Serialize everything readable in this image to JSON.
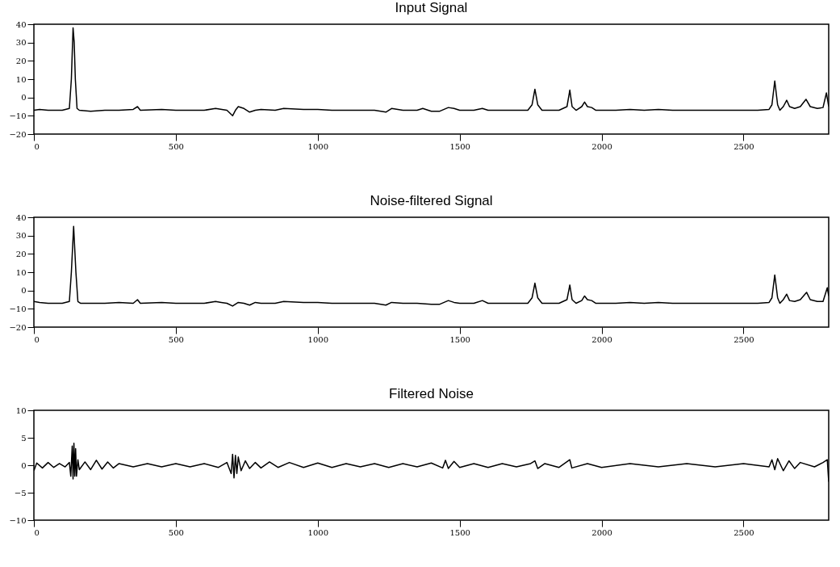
{
  "chart_data": [
    {
      "type": "line",
      "title": "Input Signal",
      "x": [
        0,
        20,
        50,
        100,
        125,
        132,
        138,
        142,
        146,
        152,
        160,
        200,
        250,
        300,
        350,
        365,
        375,
        450,
        500,
        550,
        600,
        640,
        680,
        700,
        710,
        720,
        740,
        760,
        780,
        800,
        850,
        880,
        950,
        1000,
        1050,
        1100,
        1150,
        1200,
        1240,
        1260,
        1300,
        1350,
        1370,
        1400,
        1430,
        1460,
        1480,
        1500,
        1550,
        1580,
        1600,
        1650,
        1700,
        1740,
        1755,
        1765,
        1775,
        1790,
        1850,
        1878,
        1888,
        1896,
        1910,
        1930,
        1940,
        1950,
        1965,
        1980,
        2050,
        2100,
        2150,
        2200,
        2250,
        2300,
        2350,
        2400,
        2450,
        2500,
        2550,
        2590,
        2600,
        2610,
        2620,
        2628,
        2640,
        2652,
        2662,
        2680,
        2700,
        2720,
        2735,
        2760,
        2780,
        2792,
        2800
      ],
      "series": [
        {
          "color": "#000000",
          "values": [
            -7,
            -6.5,
            -7,
            -7,
            -6,
            10,
            38,
            30,
            10,
            -6,
            -7,
            -7.5,
            -7,
            -7,
            -6.5,
            -5,
            -7,
            -6.5,
            -7,
            -7,
            -7,
            -6,
            -7,
            -10,
            -7,
            -5,
            -6,
            -8,
            -7,
            -6.5,
            -7,
            -6,
            -6.5,
            -6.5,
            -7,
            -7,
            -7,
            -7,
            -8,
            -6,
            -7,
            -7,
            -6,
            -7.5,
            -7.5,
            -5.5,
            -6,
            -7,
            -7,
            -6,
            -7,
            -7,
            -7,
            -7,
            -4,
            4.5,
            -4,
            -7,
            -7,
            -5,
            4,
            -5,
            -7,
            -5,
            -2.5,
            -5,
            -5.5,
            -7,
            -7,
            -6.5,
            -7,
            -6.5,
            -7,
            -7,
            -7,
            -7,
            -7,
            -7,
            -7,
            -6.5,
            -4,
            9,
            -4,
            -7,
            -5,
            -1.5,
            -5,
            -6,
            -5,
            -1,
            -5,
            -6,
            -5.5,
            2.5,
            -5
          ]
        }
      ],
      "xlim": [
        0,
        2800
      ],
      "xticks": [
        0,
        500,
        1000,
        1500,
        2000,
        2500
      ],
      "ylim": [
        -20,
        40
      ],
      "yticks": [
        {
          "value": -20,
          "label": "−20"
        },
        {
          "value": -10,
          "label": "−10"
        },
        0,
        10,
        20,
        30,
        40
      ]
    },
    {
      "type": "line",
      "title": "Noise-filtered Signal",
      "x": [
        0,
        20,
        50,
        100,
        125,
        132,
        140,
        148,
        155,
        165,
        200,
        250,
        300,
        350,
        365,
        375,
        450,
        500,
        550,
        600,
        640,
        660,
        680,
        700,
        720,
        740,
        760,
        780,
        800,
        850,
        880,
        950,
        1000,
        1050,
        1100,
        1150,
        1200,
        1240,
        1260,
        1300,
        1350,
        1400,
        1430,
        1460,
        1480,
        1500,
        1550,
        1580,
        1600,
        1650,
        1700,
        1740,
        1755,
        1765,
        1775,
        1790,
        1850,
        1878,
        1888,
        1896,
        1910,
        1930,
        1940,
        1950,
        1965,
        1980,
        2050,
        2100,
        2150,
        2200,
        2250,
        2300,
        2350,
        2400,
        2450,
        2500,
        2550,
        2590,
        2600,
        2610,
        2620,
        2628,
        2640,
        2652,
        2662,
        2680,
        2700,
        2722,
        2735,
        2760,
        2780,
        2795,
        2800
      ],
      "series": [
        {
          "color": "#000000",
          "values": [
            -6,
            -6.5,
            -7,
            -7,
            -6,
            10,
            35,
            10,
            -6,
            -7,
            -7,
            -7,
            -6.5,
            -7,
            -5,
            -7,
            -6.5,
            -7,
            -7,
            -7,
            -6,
            -6.5,
            -7,
            -8.5,
            -6.5,
            -7,
            -8,
            -6.5,
            -7,
            -7,
            -6,
            -6.5,
            -6.5,
            -7,
            -7,
            -7,
            -7,
            -8,
            -6.5,
            -7,
            -7,
            -7.5,
            -7.5,
            -5.5,
            -6.5,
            -7,
            -7,
            -5.5,
            -7,
            -7,
            -7,
            -7,
            -4,
            4,
            -4,
            -7,
            -7,
            -5,
            3,
            -5,
            -7,
            -5.5,
            -3,
            -5,
            -5.5,
            -7,
            -7,
            -6.5,
            -7,
            -6.5,
            -7,
            -7,
            -7,
            -7,
            -7,
            -7,
            -7,
            -6.5,
            -4,
            8.5,
            -4,
            -7,
            -5,
            -2,
            -5.5,
            -6,
            -5,
            -1,
            -5,
            -6,
            -6,
            1.5,
            -3
          ]
        }
      ],
      "xlim": [
        0,
        2800
      ],
      "xticks": [
        0,
        500,
        1000,
        1500,
        2000,
        2500
      ],
      "ylim": [
        -20,
        40
      ],
      "yticks": [
        {
          "value": -20,
          "label": "−20"
        },
        {
          "value": -10,
          "label": "−10"
        },
        0,
        10,
        20,
        30,
        40
      ]
    },
    {
      "type": "line",
      "title": "Filtered Noise",
      "x": [
        0,
        10,
        30,
        50,
        70,
        90,
        110,
        125,
        130,
        135,
        138,
        141,
        144,
        147,
        150,
        155,
        160,
        180,
        200,
        220,
        240,
        260,
        280,
        300,
        350,
        400,
        450,
        500,
        550,
        600,
        650,
        680,
        695,
        700,
        705,
        710,
        715,
        720,
        730,
        745,
        760,
        780,
        800,
        830,
        860,
        900,
        950,
        1000,
        1050,
        1100,
        1150,
        1200,
        1250,
        1300,
        1350,
        1400,
        1440,
        1450,
        1460,
        1480,
        1500,
        1550,
        1600,
        1650,
        1700,
        1750,
        1765,
        1775,
        1800,
        1850,
        1888,
        1895,
        1950,
        2000,
        2100,
        2200,
        2300,
        2400,
        2500,
        2590,
        2600,
        2610,
        2620,
        2640,
        2660,
        2680,
        2700,
        2750,
        2780,
        2795,
        2800
      ],
      "series": [
        {
          "color": "#000000",
          "values": [
            -1,
            0.4,
            -0.5,
            0.5,
            -0.4,
            0.3,
            -0.3,
            0.5,
            -2,
            3.5,
            -2.5,
            4,
            -2,
            3,
            -2,
            1,
            -0.8,
            0.6,
            -0.8,
            0.9,
            -0.7,
            0.6,
            -0.5,
            0.3,
            -0.3,
            0.3,
            -0.3,
            0.3,
            -0.3,
            0.3,
            -0.4,
            0.5,
            -1.5,
            2,
            -2.3,
            1.8,
            -1.5,
            1.5,
            -1,
            0.8,
            -0.6,
            0.5,
            -0.5,
            0.6,
            -0.4,
            0.5,
            -0.4,
            0.4,
            -0.4,
            0.3,
            -0.3,
            0.3,
            -0.4,
            0.3,
            -0.3,
            0.4,
            -0.5,
            0.9,
            -0.6,
            0.7,
            -0.4,
            0.3,
            -0.4,
            0.3,
            -0.3,
            0.3,
            0.8,
            -0.6,
            0.3,
            -0.4,
            1,
            -0.5,
            0.3,
            -0.4,
            0.3,
            -0.3,
            0.3,
            -0.3,
            0.3,
            -0.3,
            1,
            -0.8,
            1.2,
            -1,
            0.8,
            -0.6,
            0.5,
            -0.3,
            0.5,
            1,
            -3
          ]
        }
      ],
      "xlim": [
        0,
        2800
      ],
      "xticks": [
        0,
        500,
        1000,
        1500,
        2000,
        2500
      ],
      "ylim": [
        -10,
        10
      ],
      "yticks": [
        {
          "value": -10,
          "label": "−10"
        },
        {
          "value": -5,
          "label": "−5"
        },
        0,
        5,
        10
      ]
    }
  ]
}
